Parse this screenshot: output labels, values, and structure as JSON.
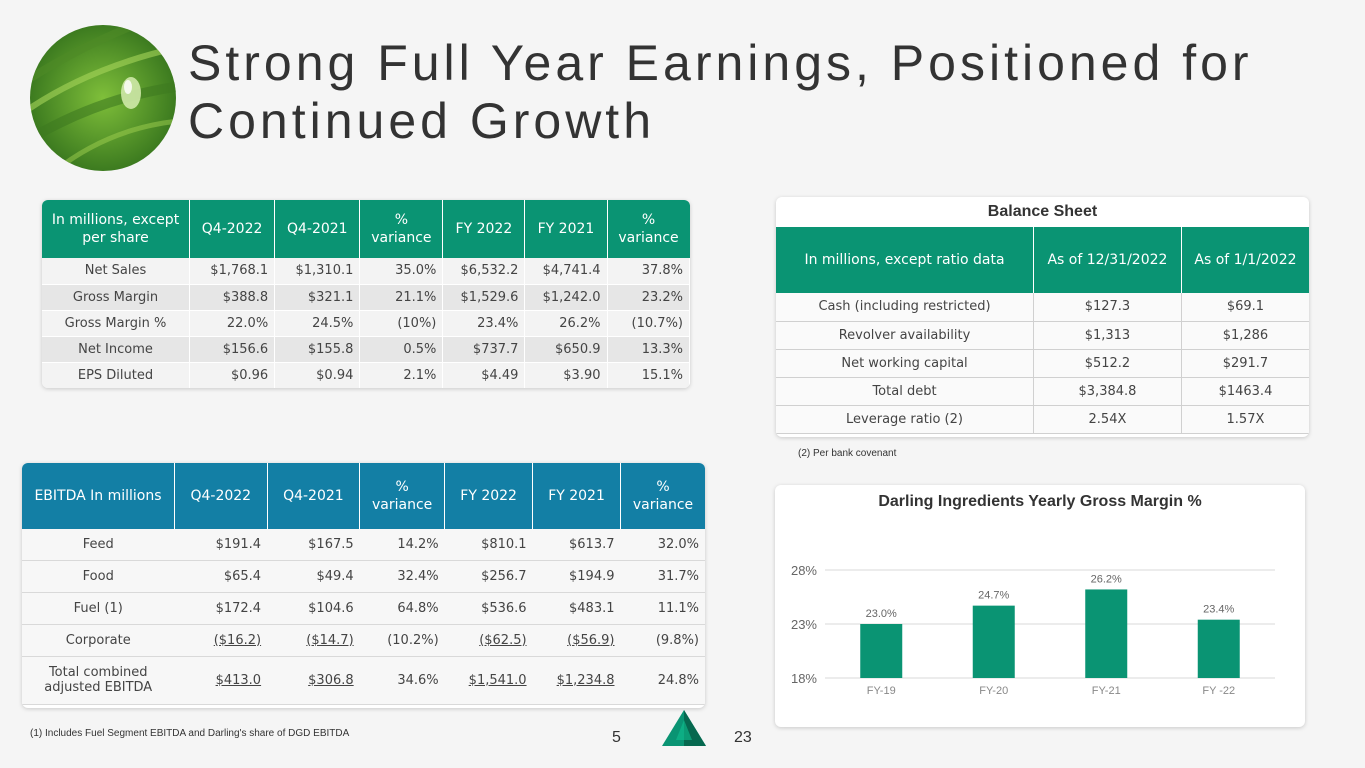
{
  "title": "Strong Full Year Earnings, Positioned for Continued Growth",
  "earnings_table": {
    "headers": [
      "In millions, except per share",
      "Q4-2022",
      "Q4-2021",
      "% variance",
      "FY 2022",
      "FY 2021",
      "% variance"
    ],
    "rows": [
      [
        "Net Sales",
        "$1,768.1",
        "$1,310.1",
        "35.0%",
        "$6,532.2",
        "$4,741.4",
        "37.8%"
      ],
      [
        "Gross Margin",
        "$388.8",
        "$321.1",
        "21.1%",
        "$1,529.6",
        "$1,242.0",
        "23.2%"
      ],
      [
        "Gross Margin %",
        "22.0%",
        "24.5%",
        "(10%)",
        "23.4%",
        "26.2%",
        "(10.7%)"
      ],
      [
        "Net Income",
        "$156.6",
        "$155.8",
        "0.5%",
        "$737.7",
        "$650.9",
        "13.3%"
      ],
      [
        "EPS Diluted",
        "$0.96",
        "$0.94",
        "2.1%",
        "$4.49",
        "$3.90",
        "15.1%"
      ]
    ]
  },
  "balance_sheet": {
    "title": "Balance Sheet",
    "headers": [
      "In millions, except ratio data",
      "As of 12/31/2022",
      "As of 1/1/2022"
    ],
    "rows": [
      [
        "Cash (including restricted)",
        "$127.3",
        "$69.1"
      ],
      [
        "Revolver availability",
        "$1,313",
        "$1,286"
      ],
      [
        "Net working capital",
        "$512.2",
        "$291.7"
      ],
      [
        "Total debt",
        "$3,384.8",
        "$1463.4"
      ],
      [
        "Leverage ratio (2)",
        "2.54X",
        "1.57X"
      ]
    ],
    "footnote": "(2) Per bank covenant"
  },
  "ebitda_table": {
    "headers": [
      "EBITDA In millions",
      "Q4-2022",
      "Q4-2021",
      "% variance",
      "FY 2022",
      "FY 2021",
      "% variance"
    ],
    "rows": [
      [
        "Feed",
        "$191.4",
        "$167.5",
        "14.2%",
        "$810.1",
        "$613.7",
        "32.0%"
      ],
      [
        "Food",
        "$65.4",
        "$49.4",
        "32.4%",
        "$256.7",
        "$194.9",
        "31.7%"
      ],
      [
        "Fuel (1)",
        "$172.4",
        "$104.6",
        "64.8%",
        "$536.6",
        "$483.1",
        "11.1%"
      ],
      [
        "Corporate",
        "($16.2)",
        "($14.7)",
        "(10.2%)",
        "($62.5)",
        "($56.9)",
        "(9.8%)"
      ],
      [
        "Total combined adjusted EBITDA",
        "$413.0",
        "$306.8",
        "34.6%",
        "$1,541.0",
        "$1,234.8",
        "24.8%"
      ]
    ],
    "footnote": "(1) Includes Fuel Segment EBITDA and Darling's share of DGD EBITDA"
  },
  "chart_data": {
    "type": "bar",
    "title": "Darling Ingredients Yearly Gross Margin %",
    "categories": [
      "FY-19",
      "FY-20",
      "FY-21",
      "FY -22"
    ],
    "values": [
      23.0,
      24.7,
      26.2,
      23.4
    ],
    "value_labels": [
      "23.0%",
      "24.7%",
      "26.2%",
      "23.4%"
    ],
    "ylim": [
      18,
      28
    ],
    "yticks": [
      "18%",
      "23%",
      "28%"
    ],
    "ytick_values": [
      18,
      23,
      28
    ],
    "bar_color": "#0a9473",
    "grid": true
  },
  "page": {
    "left_number": "5",
    "right_number": "23"
  },
  "colors": {
    "green": "#0a9473",
    "blue": "#137fa5"
  },
  "icons": {
    "logo": "leaf-droplet-logo",
    "brand": "triangle-logo-icon"
  }
}
